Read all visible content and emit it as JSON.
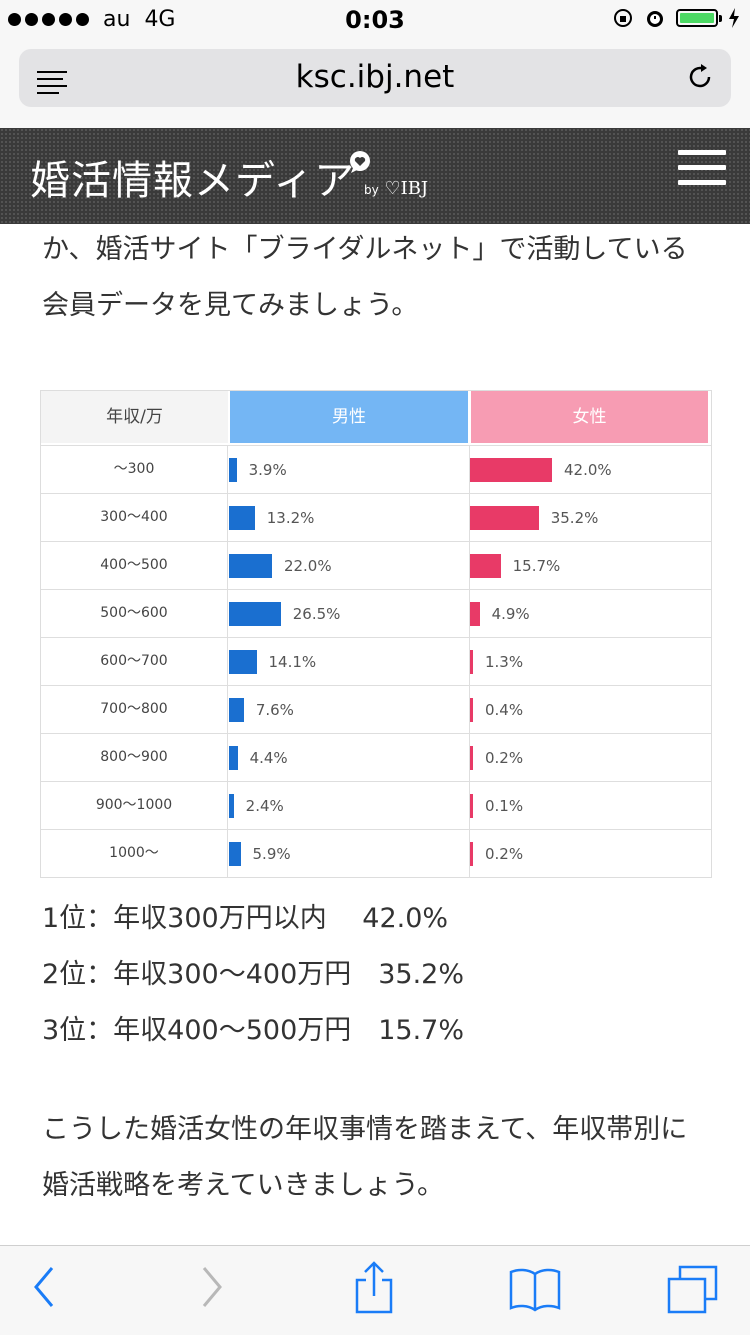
{
  "status": {
    "carrier": "au",
    "network": "4G",
    "time": "0:03",
    "battery_color": "#4cd964"
  },
  "browser": {
    "url": "ksc.ibj.net"
  },
  "site": {
    "logo": "婚活情報メディア",
    "by": "by",
    "brand": "IBJ",
    "header_bg": "#3a3a3a"
  },
  "article": {
    "para1": "か、婚活サイト「ブライダルネット」で活動している会員データを見てみましょう。",
    "para2": "こうした婚活女性の年収事情を踏まえて、年収帯別に婚活戦略を考えていきましょう。"
  },
  "chart_data": {
    "type": "table",
    "headers": [
      "年収/万",
      "男性",
      "女性"
    ],
    "colors": {
      "male": "#1a6fd0",
      "female": "#e83a67",
      "male_header": "#74b6f4",
      "female_header": "#f79cb3"
    },
    "rows": [
      {
        "label": "〜300",
        "male": 3.9,
        "male_text": "3.9%",
        "female": 42.0,
        "female_text": "42.0%"
      },
      {
        "label": "300〜400",
        "male": 13.2,
        "male_text": "13.2%",
        "female": 35.2,
        "female_text": "35.2%"
      },
      {
        "label": "400〜500",
        "male": 22.0,
        "male_text": "22.0%",
        "female": 15.7,
        "female_text": "15.7%"
      },
      {
        "label": "500〜600",
        "male": 26.5,
        "male_text": "26.5%",
        "female": 4.9,
        "female_text": "4.9%"
      },
      {
        "label": "600〜700",
        "male": 14.1,
        "male_text": "14.1%",
        "female": 1.3,
        "female_text": "1.3%"
      },
      {
        "label": "700〜800",
        "male": 7.6,
        "male_text": "7.6%",
        "female": 0.4,
        "female_text": "0.4%"
      },
      {
        "label": "800〜900",
        "male": 4.4,
        "male_text": "4.4%",
        "female": 0.2,
        "female_text": "0.2%"
      },
      {
        "label": "900〜1000",
        "male": 2.4,
        "male_text": "2.4%",
        "female": 0.1,
        "female_text": "0.1%"
      },
      {
        "label": "1000〜",
        "male": 5.9,
        "male_text": "5.9%",
        "female": 0.2,
        "female_text": "0.2%"
      }
    ]
  },
  "ranking": [
    "1位：年収300万円以内　 42.0%",
    "2位：年収300〜400万円　35.2%",
    "3位：年収400〜500万円　15.7%"
  ],
  "toolbar": {
    "icons": [
      "back-icon",
      "forward-icon",
      "share-icon",
      "bookmarks-icon",
      "tabs-icon"
    ],
    "accent": "#1a7cf7"
  }
}
